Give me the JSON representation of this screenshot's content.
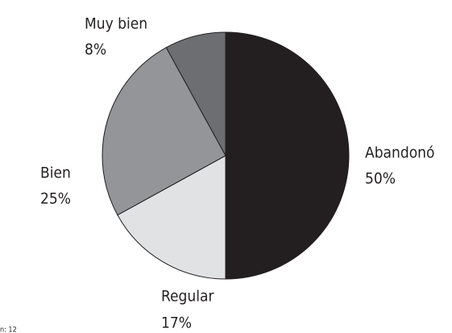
{
  "chart_data": {
    "type": "pie",
    "categories": [
      "Abandonó",
      "Regular",
      "Bien",
      "Muy bien"
    ],
    "values": [
      50,
      17,
      25,
      8
    ],
    "value_labels": [
      "50%",
      "17%",
      "25%",
      "8%"
    ],
    "colors": [
      "#231f20",
      "#e1e2e4",
      "#949598",
      "#6d6e71"
    ],
    "note": "n: 12"
  }
}
